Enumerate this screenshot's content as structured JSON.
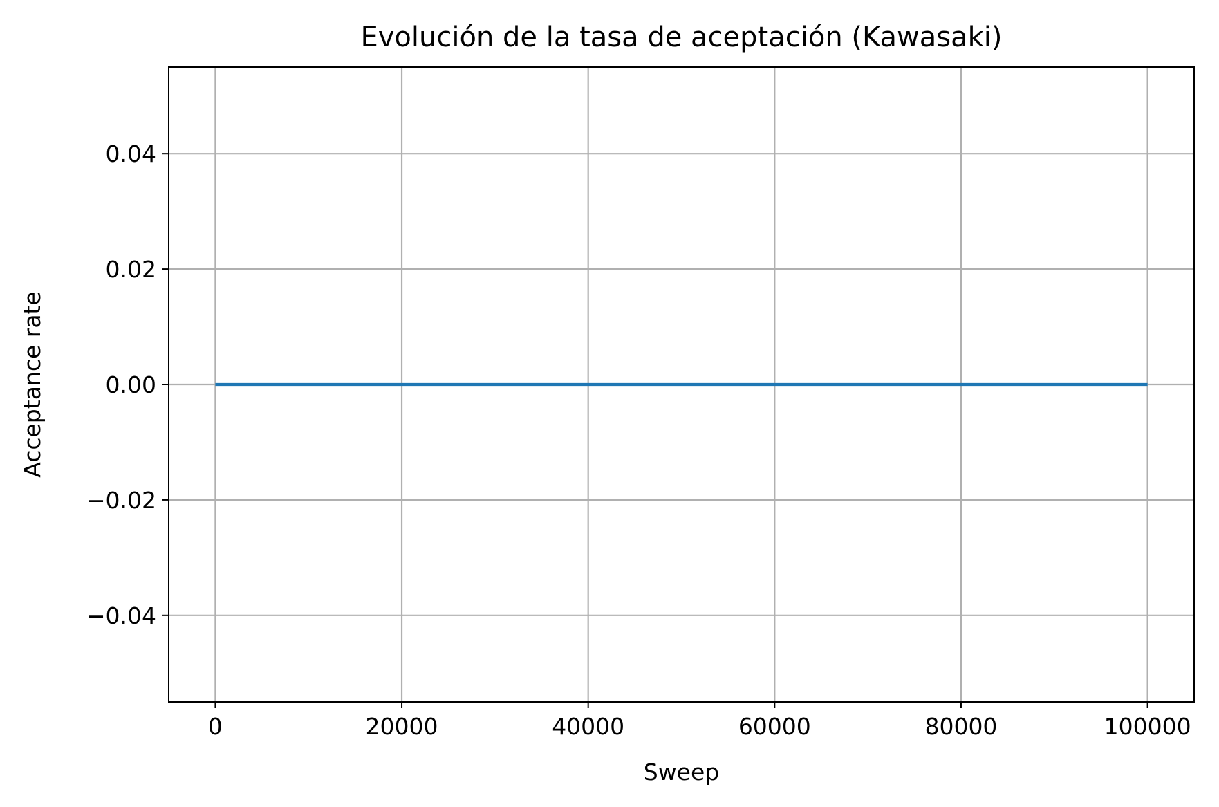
{
  "chart_data": {
    "type": "line",
    "title": "Evolución de la tasa de aceptación (Kawasaki)",
    "xlabel": "Sweep",
    "ylabel": "Acceptance rate",
    "xlim": [
      -5000,
      105000
    ],
    "ylim": [
      -0.055,
      0.055
    ],
    "xticks": [
      0,
      20000,
      40000,
      60000,
      80000,
      100000
    ],
    "xtick_labels": [
      "0",
      "20000",
      "40000",
      "60000",
      "80000",
      "100000"
    ],
    "yticks": [
      -0.04,
      -0.02,
      0.0,
      0.02,
      0.04
    ],
    "ytick_labels": [
      "−0.04",
      "−0.02",
      "0.00",
      "0.02",
      "0.04"
    ],
    "grid": true,
    "series": [
      {
        "color": "#1f77b4",
        "x": [
          0,
          10000,
          20000,
          30000,
          40000,
          50000,
          60000,
          70000,
          80000,
          90000,
          100000
        ],
        "y": [
          0,
          0,
          0,
          0,
          0,
          0,
          0,
          0,
          0,
          0,
          0
        ]
      }
    ]
  }
}
